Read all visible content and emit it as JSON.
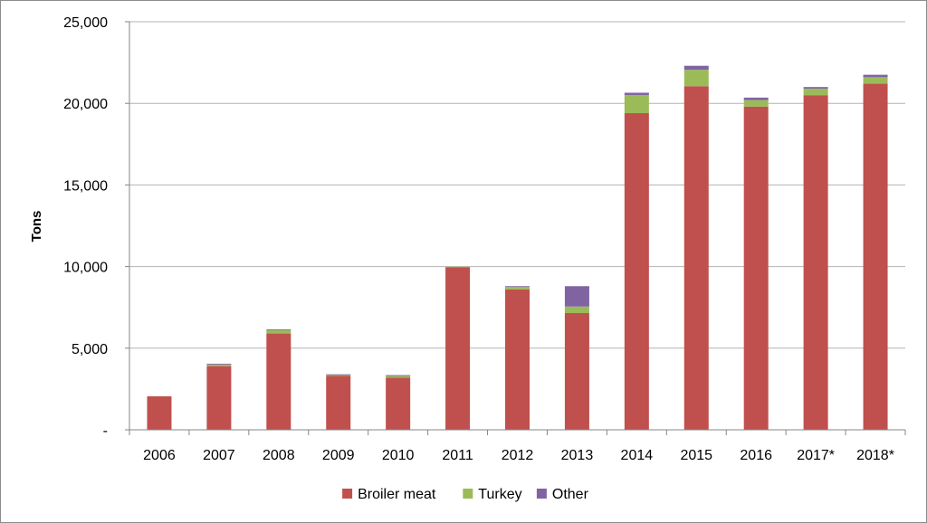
{
  "chart_data": {
    "type": "bar",
    "stacked": true,
    "title": "",
    "xlabel": "",
    "ylabel": "Tons",
    "ylim": [
      0,
      25000
    ],
    "yticks": [
      {
        "value": 0,
        "label": "-"
      },
      {
        "value": 5000,
        "label": "5,000"
      },
      {
        "value": 10000,
        "label": "10,000"
      },
      {
        "value": 15000,
        "label": "15,000"
      },
      {
        "value": 20000,
        "label": "20,000"
      },
      {
        "value": 25000,
        "label": "25,000"
      }
    ],
    "categories": [
      "2006",
      "2007",
      "2008",
      "2009",
      "2010",
      "2011",
      "2012",
      "2013",
      "2014",
      "2015",
      "2016",
      "2017*",
      "2018*"
    ],
    "series": [
      {
        "name": "Broiler meat",
        "color": "#c0504d",
        "values": [
          2050,
          3900,
          5900,
          3300,
          3200,
          9950,
          8600,
          7150,
          19400,
          21050,
          19800,
          20500,
          21200
        ]
      },
      {
        "name": "Turkey",
        "color": "#9bbb59",
        "values": [
          0,
          100,
          200,
          50,
          100,
          50,
          150,
          400,
          1100,
          1000,
          400,
          400,
          400
        ]
      },
      {
        "name": "Other",
        "color": "#8064a2",
        "values": [
          0,
          50,
          50,
          50,
          50,
          0,
          50,
          1250,
          150,
          250,
          150,
          100,
          150
        ]
      }
    ],
    "grid": true,
    "legend": "bottom-center"
  }
}
